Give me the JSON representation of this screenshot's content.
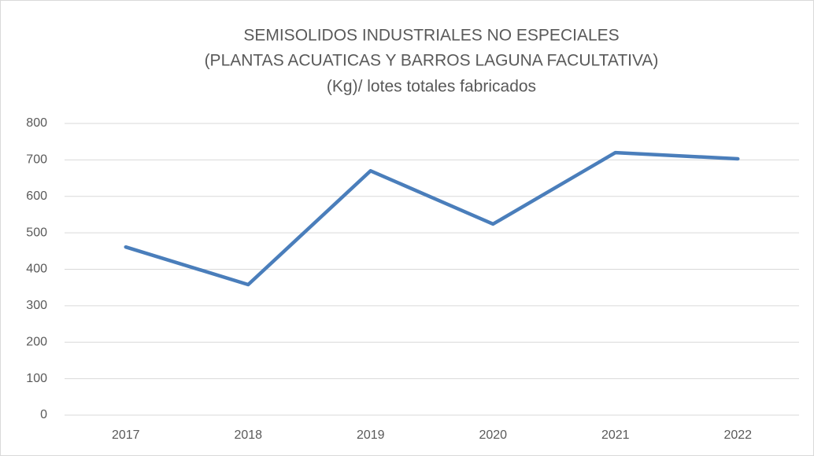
{
  "chart_data": {
    "type": "line",
    "title": [
      "SEMISOLIDOS INDUSTRIALES NO ESPECIALES",
      "(PLANTAS ACUATICAS Y BARROS LAGUNA FACULTATIVA)",
      "(Kg)/ lotes totales fabricados"
    ],
    "categories": [
      "2017",
      "2018",
      "2019",
      "2020",
      "2021",
      "2022"
    ],
    "values": [
      461,
      358,
      670,
      524,
      720,
      703
    ],
    "color": "#4a7ebb",
    "ylim": [
      0,
      800
    ],
    "yticks": [
      0,
      100,
      200,
      300,
      400,
      500,
      600,
      700,
      800
    ],
    "grid": true
  }
}
